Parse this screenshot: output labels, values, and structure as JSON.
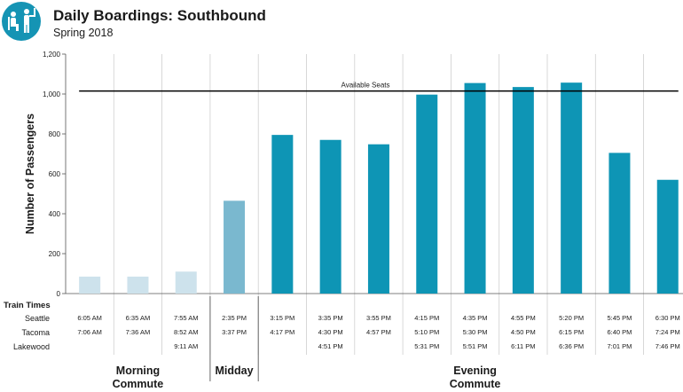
{
  "header": {
    "title": "Daily Boardings: Southbound",
    "subtitle": "Spring 2018",
    "logo_icon": "transit-passengers-icon",
    "logo_color": "#1594b4"
  },
  "colors": {
    "morning": "#cde2ec",
    "midday": "#7ab8cf",
    "evening": "#0e95b5",
    "seats_line": "#000000"
  },
  "chart_data": {
    "type": "bar",
    "title": "Daily Boardings: Southbound",
    "subtitle": "Spring 2018",
    "xlabel": "",
    "ylabel": "Number of Passengers",
    "ylim": [
      0,
      1200
    ],
    "yticks": [
      0,
      200,
      400,
      600,
      800,
      1000,
      1200
    ],
    "ytick_labels": [
      "0",
      "200",
      "400",
      "600",
      "800",
      "1,000",
      "1,200"
    ],
    "grid": false,
    "values": [
      85,
      85,
      110,
      465,
      795,
      770,
      748,
      997,
      1055,
      1035,
      1057,
      705,
      570
    ],
    "groups": [
      "morning",
      "morning",
      "morning",
      "midday",
      "evening",
      "evening",
      "evening",
      "evening",
      "evening",
      "evening",
      "evening",
      "evening",
      "evening"
    ],
    "reference_line": {
      "label": "Available Seats",
      "value": 1015
    },
    "table": {
      "header": "Train Times",
      "rows": [
        {
          "label": "Seattle",
          "values": [
            "6:05 AM",
            "6:35 AM",
            "7:55 AM",
            "2:35 PM",
            "3:15 PM",
            "3:35 PM",
            "3:55 PM",
            "4:15 PM",
            "4:35 PM",
            "4:55 PM",
            "5:20 PM",
            "5:45 PM",
            "6:30 PM"
          ]
        },
        {
          "label": "Tacoma",
          "values": [
            "7:06 AM",
            "7:36 AM",
            "8:52 AM",
            "3:37 PM",
            "4:17 PM",
            "4:30 PM",
            "4:57 PM",
            "5:10 PM",
            "5:30 PM",
            "4:50 PM",
            "6:15 PM",
            "6:40 PM",
            "7:24 PM"
          ]
        },
        {
          "label": "Lakewood",
          "values": [
            "",
            "",
            "9:11 AM",
            "",
            "",
            "4:51 PM",
            "",
            "5:31 PM",
            "5:51 PM",
            "6:11 PM",
            "6:36 PM",
            "7:01 PM",
            "7:46 PM"
          ]
        }
      ]
    },
    "group_labels": [
      {
        "id": "morning",
        "lines": [
          "Morning",
          "Commute"
        ]
      },
      {
        "id": "midday",
        "lines": [
          "Midday"
        ]
      },
      {
        "id": "evening",
        "lines": [
          "Evening",
          "Commute"
        ]
      }
    ]
  }
}
